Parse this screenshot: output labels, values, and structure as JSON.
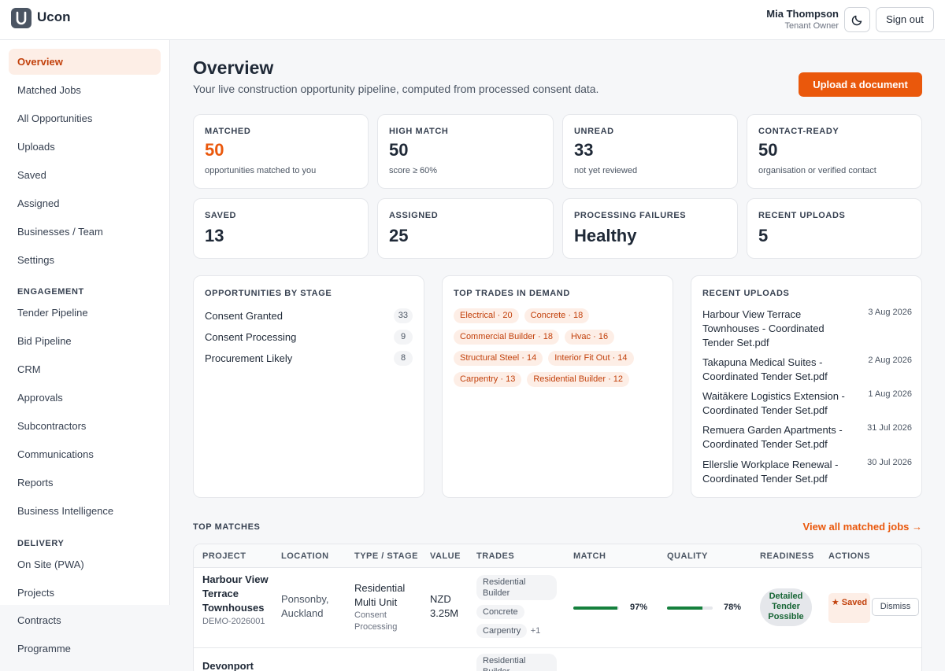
{
  "header": {
    "brand": "Ucon",
    "user_name": "Mia Thompson",
    "user_role": "Tenant Owner",
    "signout_label": "Sign out"
  },
  "sidebar": {
    "items": [
      {
        "label": "Overview",
        "active": true
      },
      {
        "label": "Matched Jobs"
      },
      {
        "label": "All Opportunities"
      },
      {
        "label": "Uploads"
      },
      {
        "label": "Saved"
      },
      {
        "label": "Assigned"
      },
      {
        "label": "Businesses / Team"
      },
      {
        "label": "Settings"
      }
    ],
    "engagement_title": "ENGAGEMENT",
    "engagement": [
      {
        "label": "Tender Pipeline"
      },
      {
        "label": "Bid Pipeline"
      },
      {
        "label": "CRM"
      },
      {
        "label": "Approvals"
      },
      {
        "label": "Subcontractors"
      },
      {
        "label": "Communications"
      },
      {
        "label": "Reports"
      },
      {
        "label": "Business Intelligence"
      }
    ],
    "delivery_title": "DELIVERY",
    "delivery": [
      {
        "label": "On Site (PWA)"
      },
      {
        "label": "Projects"
      },
      {
        "label": "Contracts"
      },
      {
        "label": "Programme"
      }
    ]
  },
  "main": {
    "title": "Overview",
    "subtitle": "Your live construction opportunity pipeline, computed from processed consent data.",
    "upload_label": "Upload a document"
  },
  "stats": [
    {
      "label": "MATCHED",
      "value": "50",
      "sub": "opportunities matched to you"
    },
    {
      "label": "HIGH MATCH",
      "value": "50",
      "sub": "score ≥ 60%"
    },
    {
      "label": "UNREAD",
      "value": "33",
      "sub": "not yet reviewed"
    },
    {
      "label": "CONTACT-READY",
      "value": "50",
      "sub": "organisation or verified contact"
    },
    {
      "label": "SAVED",
      "value": "13"
    },
    {
      "label": "ASSIGNED",
      "value": "25"
    },
    {
      "label": "PROCESSING FAILURES",
      "value": "Healthy"
    },
    {
      "label": "RECENT UPLOADS",
      "value": "5"
    }
  ],
  "stages": {
    "title": "OPPORTUNITIES BY STAGE",
    "items": [
      {
        "name": "Consent Granted",
        "count": "33"
      },
      {
        "name": "Consent Processing",
        "count": "9"
      },
      {
        "name": "Procurement Likely",
        "count": "8"
      }
    ]
  },
  "trades": {
    "title": "TOP TRADES IN DEMAND",
    "items": [
      "Electrical · 20",
      "Concrete · 18",
      "Commercial Builder · 18",
      "Hvac · 16",
      "Structural Steel · 14",
      "Interior Fit Out · 14",
      "Carpentry · 13",
      "Residential Builder · 12"
    ]
  },
  "uploads": {
    "title": "RECENT UPLOADS",
    "items": [
      {
        "name": "Harbour View Terrace Townhouses - Coordinated Tender Set.pdf",
        "date": "3 Aug 2026"
      },
      {
        "name": "Takapuna Medical Suites - Coordinated Tender Set.pdf",
        "date": "2 Aug 2026"
      },
      {
        "name": "Waitākere Logistics Extension - Coordinated Tender Set.pdf",
        "date": "1 Aug 2026"
      },
      {
        "name": "Remuera Garden Apartments - Coordinated Tender Set.pdf",
        "date": "31 Jul 2026"
      },
      {
        "name": "Ellerslie Workplace Renewal - Coordinated Tender Set.pdf",
        "date": "30 Jul 2026"
      }
    ]
  },
  "top_matches": {
    "title": "TOP MATCHES",
    "view_all": "View all matched jobs →",
    "columns": [
      "PROJECT",
      "LOCATION",
      "TYPE / STAGE",
      "VALUE",
      "TRADES",
      "MATCH",
      "QUALITY",
      "READINESS",
      "ACTIONS"
    ],
    "rows": [
      {
        "project": "Harbour View Terrace Townhouses",
        "id": "DEMO-2026001",
        "location": "Ponsonby, Auckland",
        "type": "Residential Multi Unit",
        "stage": "Consent Processing",
        "value": "NZD 3.25M",
        "trades": [
          "Residential Builder",
          "Concrete",
          "Carpentry"
        ],
        "trades_more": "+1",
        "match": 97,
        "match_label": "97%",
        "quality": 78,
        "quality_label": "78%",
        "readiness": "Detailed Tender Possible",
        "save_label": "★ Saved",
        "dismiss_label": "Dismiss"
      },
      {
        "project": "Devonport",
        "trades": [
          "Residential Builder"
        ]
      }
    ]
  },
  "colors": {
    "accent": "#ea580c",
    "accent_soft": "#fdeee6",
    "success": "#15803d"
  }
}
